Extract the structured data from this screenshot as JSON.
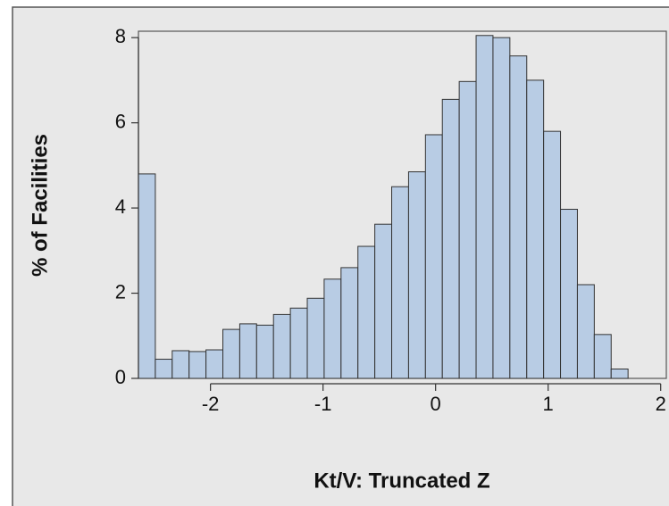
{
  "chart_data": {
    "type": "histogram",
    "xlabel": "Kt/V: Truncated Z",
    "ylabel": "% of Facilities",
    "bins": [
      -2.64,
      -2.49,
      -2.34,
      -2.19,
      -2.04,
      -1.89,
      -1.74,
      -1.59,
      -1.44,
      -1.29,
      -1.14,
      -0.99,
      -0.84,
      -0.69,
      -0.54,
      -0.39,
      -0.24,
      -0.09,
      0.06,
      0.21,
      0.36,
      0.51,
      0.66,
      0.81,
      0.96,
      1.11,
      1.26,
      1.41,
      1.56,
      1.71
    ],
    "values": [
      4.8,
      0.45,
      0.65,
      0.63,
      0.67,
      1.15,
      1.28,
      1.25,
      1.5,
      1.65,
      1.88,
      2.33,
      2.6,
      3.1,
      3.62,
      4.5,
      4.85,
      5.72,
      6.55,
      6.97,
      8.05,
      8.0,
      7.57,
      7.0,
      5.8,
      3.97,
      2.2,
      1.03,
      0.22
    ],
    "color": "#b8cce4",
    "xlim": [
      -2.64,
      2.05
    ],
    "ylim": [
      0,
      8.15
    ],
    "xticks": [
      -2,
      -1,
      0,
      1,
      2
    ],
    "yticks": [
      0,
      2,
      4,
      6,
      8
    ]
  }
}
